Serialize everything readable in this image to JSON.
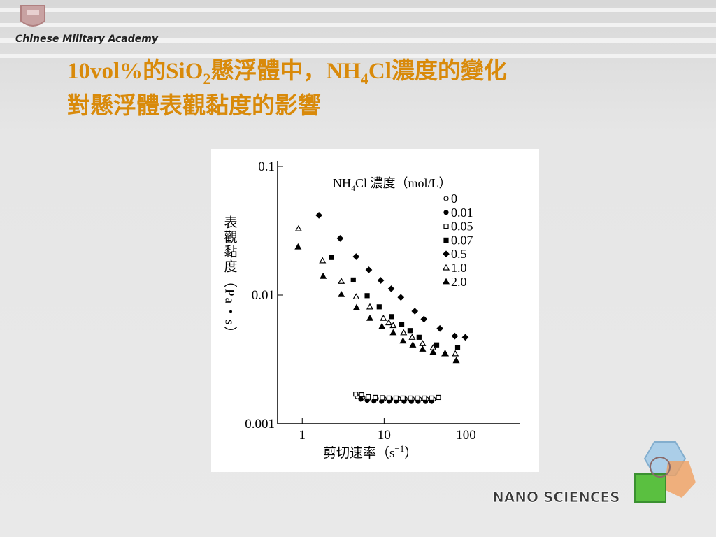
{
  "slide": {
    "logo_text": "Chinese Military Academy",
    "title_line1": [
      "10vol%的SiO",
      "2",
      "懸浮體中，NH",
      "4",
      "Cl濃度的變化"
    ],
    "title_line2": "對懸浮體表觀黏度的影響",
    "brand": "NANO SCIENCES"
  },
  "chart_data": {
    "type": "scatter",
    "x_label": [
      "剪切速率（s",
      "−1",
      "）"
    ],
    "y_label": "表觀黏度（Pa・s）",
    "legend_title": [
      "NH",
      "4",
      "Cl 濃度（mol/L）"
    ],
    "xscale": "log",
    "yscale": "log",
    "xlim": [
      0.5,
      450
    ],
    "ylim": [
      0.001,
      0.1
    ],
    "xticks": [
      1,
      10,
      100
    ],
    "yticks": [
      0.1,
      0.01,
      0.001
    ],
    "legend": "upper right",
    "series": [
      {
        "name": "0",
        "marker": "circle-open",
        "color": "#000000",
        "x": [
          4.7,
          5.5,
          6.5,
          8,
          10,
          12,
          15,
          18,
          22,
          27,
          33,
          40
        ],
        "values": [
          0.00162,
          0.0016,
          0.00158,
          0.00157,
          0.00156,
          0.00156,
          0.00156,
          0.00156,
          0.00156,
          0.00155,
          0.00155,
          0.00155
        ]
      },
      {
        "name": "0.01",
        "marker": "circle-filled",
        "color": "#000000",
        "x": [
          5.2,
          6.2,
          7.5,
          9.3,
          11.5,
          14,
          17.5,
          21.5,
          26,
          32,
          38
        ],
        "values": [
          0.00155,
          0.00152,
          0.0015,
          0.00149,
          0.00149,
          0.00149,
          0.00149,
          0.00149,
          0.00149,
          0.00149,
          0.00149
        ]
      },
      {
        "name": "0.05",
        "marker": "square-open",
        "color": "#000000",
        "x": [
          4.5,
          5.3,
          6.4,
          7.8,
          9.5,
          11.5,
          14,
          17,
          21,
          25.5,
          31,
          38,
          46
        ],
        "values": [
          0.0017,
          0.00168,
          0.00162,
          0.0016,
          0.00159,
          0.00158,
          0.00158,
          0.00158,
          0.00158,
          0.00158,
          0.00158,
          0.00158,
          0.0016
        ]
      },
      {
        "name": "0.07",
        "marker": "square-filled",
        "color": "#000000",
        "x": [
          2.29,
          4.2,
          6.2,
          8.7,
          12.4,
          16.4,
          20.7,
          26.7,
          43.8,
          79
        ],
        "values": [
          0.0196,
          0.0131,
          0.0099,
          0.0081,
          0.0068,
          0.0059,
          0.0053,
          0.0047,
          0.0041,
          0.0039
        ]
      },
      {
        "name": "0.5",
        "marker": "diamond-filled",
        "color": "#000000",
        "x": [
          1.6,
          2.9,
          4.55,
          6.5,
          9.1,
          12.2,
          16,
          23.7,
          30.6,
          48,
          73,
          98
        ],
        "values": [
          0.0417,
          0.0276,
          0.0199,
          0.0157,
          0.013,
          0.0112,
          0.0096,
          0.0075,
          0.0065,
          0.0055,
          0.0048,
          0.0047
        ]
      },
      {
        "name": "1.0",
        "marker": "triangle-open",
        "color": "#000000",
        "x": [
          0.9,
          1.77,
          3.0,
          4.55,
          6.7,
          9.8,
          11.4,
          12.9,
          17.3,
          22,
          29.5,
          39.6,
          56,
          74
        ],
        "values": [
          0.0328,
          0.0185,
          0.0128,
          0.0097,
          0.0081,
          0.0066,
          0.0061,
          0.0058,
          0.0051,
          0.0047,
          0.0042,
          0.0039,
          0.0035,
          0.0035
        ]
      },
      {
        "name": "2.0",
        "marker": "triangle-filled",
        "color": "#000000",
        "x": [
          0.89,
          1.8,
          3.0,
          4.6,
          6.7,
          9.4,
          12.9,
          17,
          22.4,
          29.5,
          39.6,
          55,
          76
        ],
        "values": [
          0.0237,
          0.014,
          0.0101,
          0.008,
          0.0066,
          0.0057,
          0.0051,
          0.0044,
          0.0041,
          0.0038,
          0.0036,
          0.0035,
          0.0031
        ]
      }
    ]
  }
}
